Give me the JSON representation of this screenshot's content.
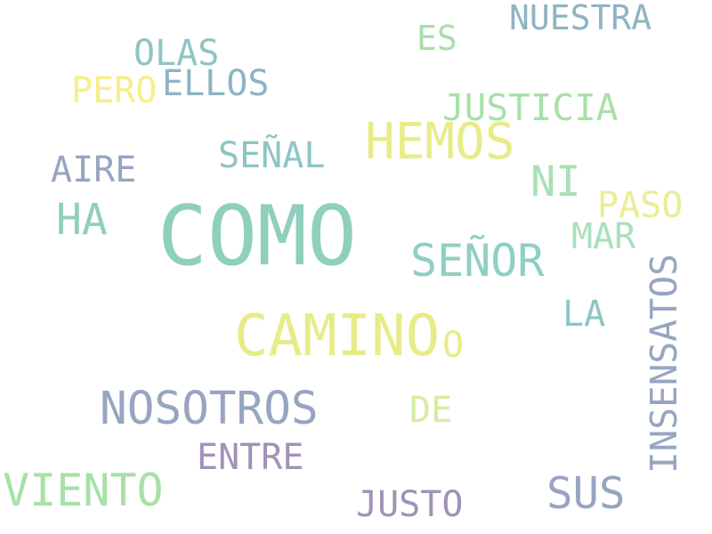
{
  "background": "#ffffff",
  "palette": {
    "teal": "#8fcfbd",
    "blue_grey": "#8fb4c4",
    "slate": "#98a5c1",
    "mauve": "#a192b6",
    "mint": "#a8e0a7",
    "yellow": "#e7ec88",
    "pale_yellow": "#e9ee95",
    "lemon": "#f7ee8a"
  },
  "words": [
    {
      "key": "nuestra",
      "text": "NUESTRA",
      "color": "#8fb4c4",
      "orientation": "horizontal"
    },
    {
      "key": "es",
      "text": "ES",
      "color": "#a8e0a7",
      "orientation": "horizontal"
    },
    {
      "key": "olas",
      "text": "OLAS",
      "color": "#8fc4c4",
      "orientation": "horizontal"
    },
    {
      "key": "ellos",
      "text": "ELLOS",
      "color": "#8fb4c4",
      "orientation": "horizontal"
    },
    {
      "key": "pero",
      "text": "PERO",
      "color": "#f7ee8a",
      "orientation": "horizontal"
    },
    {
      "key": "justicia",
      "text": "JUSTICIA",
      "color": "#a8e0a7",
      "orientation": "horizontal"
    },
    {
      "key": "hemos",
      "text": "HEMOS",
      "color": "#e7ec88",
      "orientation": "horizontal"
    },
    {
      "key": "senal",
      "text": "SEÑAL",
      "color": "#8fc4c4",
      "orientation": "horizontal"
    },
    {
      "key": "aire",
      "text": "AIRE",
      "color": "#98a5c1",
      "orientation": "horizontal"
    },
    {
      "key": "ni",
      "text": "NI",
      "color": "#a8e0b5",
      "orientation": "horizontal"
    },
    {
      "key": "paso",
      "text": "PASO",
      "color": "#e9ee95",
      "orientation": "horizontal"
    },
    {
      "key": "ha",
      "text": "HA",
      "color": "#8fcfbd",
      "orientation": "horizontal"
    },
    {
      "key": "como",
      "text": "COMO",
      "color": "#8fcfbd",
      "orientation": "horizontal"
    },
    {
      "key": "mar",
      "text": "MAR",
      "color": "#a8e0bd",
      "orientation": "horizontal"
    },
    {
      "key": "senor",
      "text": "SEÑOR",
      "color": "#8fcfc4",
      "orientation": "horizontal"
    },
    {
      "key": "la",
      "text": "LA",
      "color": "#8fc4c4",
      "orientation": "horizontal"
    },
    {
      "key": "camino",
      "text": "CAMINO",
      "color": "#e7ec88",
      "orientation": "horizontal"
    },
    {
      "key": "o",
      "text": "O",
      "color": "#e7ec88",
      "orientation": "horizontal"
    },
    {
      "key": "nosotros",
      "text": "NOSOTROS",
      "color": "#98a5c1",
      "orientation": "horizontal"
    },
    {
      "key": "de",
      "text": "DE",
      "color": "#d6eca0",
      "orientation": "horizontal"
    },
    {
      "key": "entre",
      "text": "ENTRE",
      "color": "#a192b6",
      "orientation": "horizontal"
    },
    {
      "key": "viento",
      "text": "VIENTO",
      "color": "#a8e0a7",
      "orientation": "horizontal"
    },
    {
      "key": "sus",
      "text": "SUS",
      "color": "#98a5c1",
      "orientation": "horizontal"
    },
    {
      "key": "justo",
      "text": "JUSTO",
      "color": "#a192b6",
      "orientation": "horizontal"
    },
    {
      "key": "insensatos",
      "text": "INSENSATOS",
      "color": "#98a5c1",
      "orientation": "vertical"
    }
  ]
}
